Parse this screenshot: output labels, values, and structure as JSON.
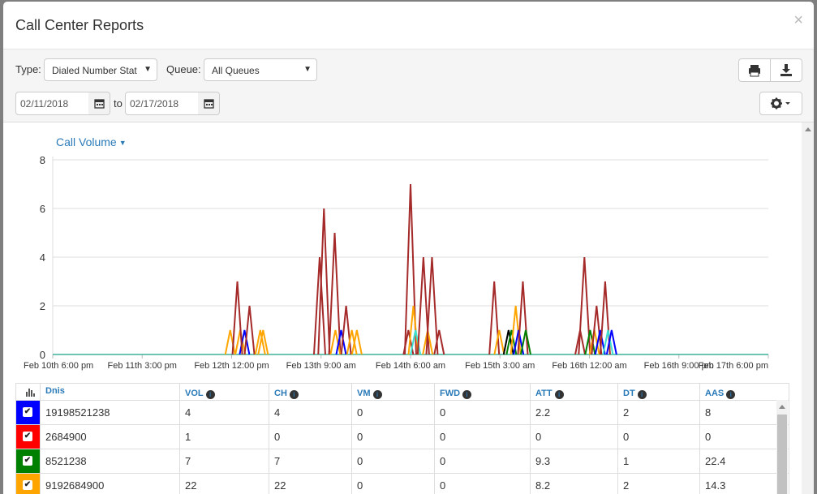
{
  "modal": {
    "title": "Call Center Reports",
    "close_label": "×"
  },
  "toolbar": {
    "type_label": "Type:",
    "type_value": "Dialed Number Stat",
    "queue_label": "Queue:",
    "queue_value": "All Queues",
    "date_from": "02/11/2018",
    "to_label": "to",
    "date_to": "02/17/2018",
    "print_icon": "print-icon",
    "download_icon": "download-icon",
    "settings_icon": "gear-icon"
  },
  "chart": {
    "metric_label": "Call Volume"
  },
  "chart_data": {
    "type": "line",
    "title": "",
    "xlabel": "",
    "ylabel": "",
    "ylim": [
      0,
      8
    ],
    "yticks": [
      "0",
      "2",
      "4",
      "6",
      "8"
    ],
    "xticks": [
      "Feb 10th 6:00 pm",
      "Feb 11th 3:00 pm",
      "Feb 12th 12:00 pm",
      "Feb 13th 9:00 am",
      "Feb 14th 6:00 am",
      "Feb 15th 3:00 am",
      "Feb 16th 12:00 am",
      "Feb 16th 9:00 pm",
      "Feb 17th 6:00 pm"
    ],
    "grid": true,
    "spikes": [
      {
        "x": 0.248,
        "y": 1,
        "color": "#ffa500"
      },
      {
        "x": 0.262,
        "y": 1,
        "color": "#ffa500"
      },
      {
        "x": 0.268,
        "y": 1,
        "color": "#0000ff"
      },
      {
        "x": 0.258,
        "y": 3,
        "color": "#a52a2a"
      },
      {
        "x": 0.275,
        "y": 2,
        "color": "#a52a2a"
      },
      {
        "x": 0.29,
        "y": 1,
        "color": "#ffa500"
      },
      {
        "x": 0.294,
        "y": 1,
        "color": "#ffa500"
      },
      {
        "x": 0.373,
        "y": 4,
        "color": "#a52a2a"
      },
      {
        "x": 0.379,
        "y": 6,
        "color": "#a52a2a"
      },
      {
        "x": 0.394,
        "y": 5,
        "color": "#a52a2a"
      },
      {
        "x": 0.395,
        "y": 1,
        "color": "#ffa500"
      },
      {
        "x": 0.403,
        "y": 1,
        "color": "#0000ff"
      },
      {
        "x": 0.41,
        "y": 2,
        "color": "#a52a2a"
      },
      {
        "x": 0.418,
        "y": 1,
        "color": "#ffa500"
      },
      {
        "x": 0.425,
        "y": 1,
        "color": "#ffa500"
      },
      {
        "x": 0.497,
        "y": 1,
        "color": "#a52a2a"
      },
      {
        "x": 0.5,
        "y": 7,
        "color": "#a52a2a"
      },
      {
        "x": 0.504,
        "y": 2,
        "color": "#ffa500"
      },
      {
        "x": 0.507,
        "y": 1,
        "color": "#40e0d0"
      },
      {
        "x": 0.518,
        "y": 4,
        "color": "#a52a2a"
      },
      {
        "x": 0.524,
        "y": 1,
        "color": "#ffa500"
      },
      {
        "x": 0.53,
        "y": 4,
        "color": "#a52a2a"
      },
      {
        "x": 0.54,
        "y": 1,
        "color": "#a52a2a"
      },
      {
        "x": 0.617,
        "y": 3,
        "color": "#a52a2a"
      },
      {
        "x": 0.624,
        "y": 1,
        "color": "#ffa500"
      },
      {
        "x": 0.637,
        "y": 1,
        "color": "#000000"
      },
      {
        "x": 0.641,
        "y": 1,
        "color": "#008000"
      },
      {
        "x": 0.647,
        "y": 2,
        "color": "#ffa500"
      },
      {
        "x": 0.651,
        "y": 1,
        "color": "#0000ff"
      },
      {
        "x": 0.657,
        "y": 3,
        "color": "#a52a2a"
      },
      {
        "x": 0.661,
        "y": 1,
        "color": "#008000"
      },
      {
        "x": 0.737,
        "y": 1,
        "color": "#a52a2a"
      },
      {
        "x": 0.743,
        "y": 4,
        "color": "#a52a2a"
      },
      {
        "x": 0.751,
        "y": 1,
        "color": "#008000"
      },
      {
        "x": 0.757,
        "y": 1,
        "color": "#ffa500"
      },
      {
        "x": 0.76,
        "y": 2,
        "color": "#a52a2a"
      },
      {
        "x": 0.765,
        "y": 1,
        "color": "#0000ff"
      },
      {
        "x": 0.772,
        "y": 3,
        "color": "#a52a2a"
      },
      {
        "x": 0.776,
        "y": 1,
        "color": "#40e0d0"
      },
      {
        "x": 0.781,
        "y": 1,
        "color": "#0000ff"
      }
    ]
  },
  "table": {
    "columns": [
      "Dnis",
      "VOL",
      "CH",
      "VM",
      "FWD",
      "ATT",
      "DT",
      "AAS"
    ],
    "rows": [
      {
        "color": "#0000ff",
        "dnis": "19198521238",
        "vol": "4",
        "ch": "4",
        "vm": "0",
        "fwd": "0",
        "att": "2.2",
        "dt": "2",
        "aas": "8"
      },
      {
        "color": "#ff0000",
        "dnis": "2684900",
        "vol": "1",
        "ch": "0",
        "vm": "0",
        "fwd": "0",
        "att": "0",
        "dt": "0",
        "aas": "0"
      },
      {
        "color": "#008000",
        "dnis": "8521238",
        "vol": "7",
        "ch": "7",
        "vm": "0",
        "fwd": "0",
        "att": "9.3",
        "dt": "1",
        "aas": "22.4"
      },
      {
        "color": "#ffa500",
        "dnis": "9192684900",
        "vol": "22",
        "ch": "22",
        "vm": "0",
        "fwd": "0",
        "att": "8.2",
        "dt": "2",
        "aas": "14.3"
      }
    ]
  }
}
